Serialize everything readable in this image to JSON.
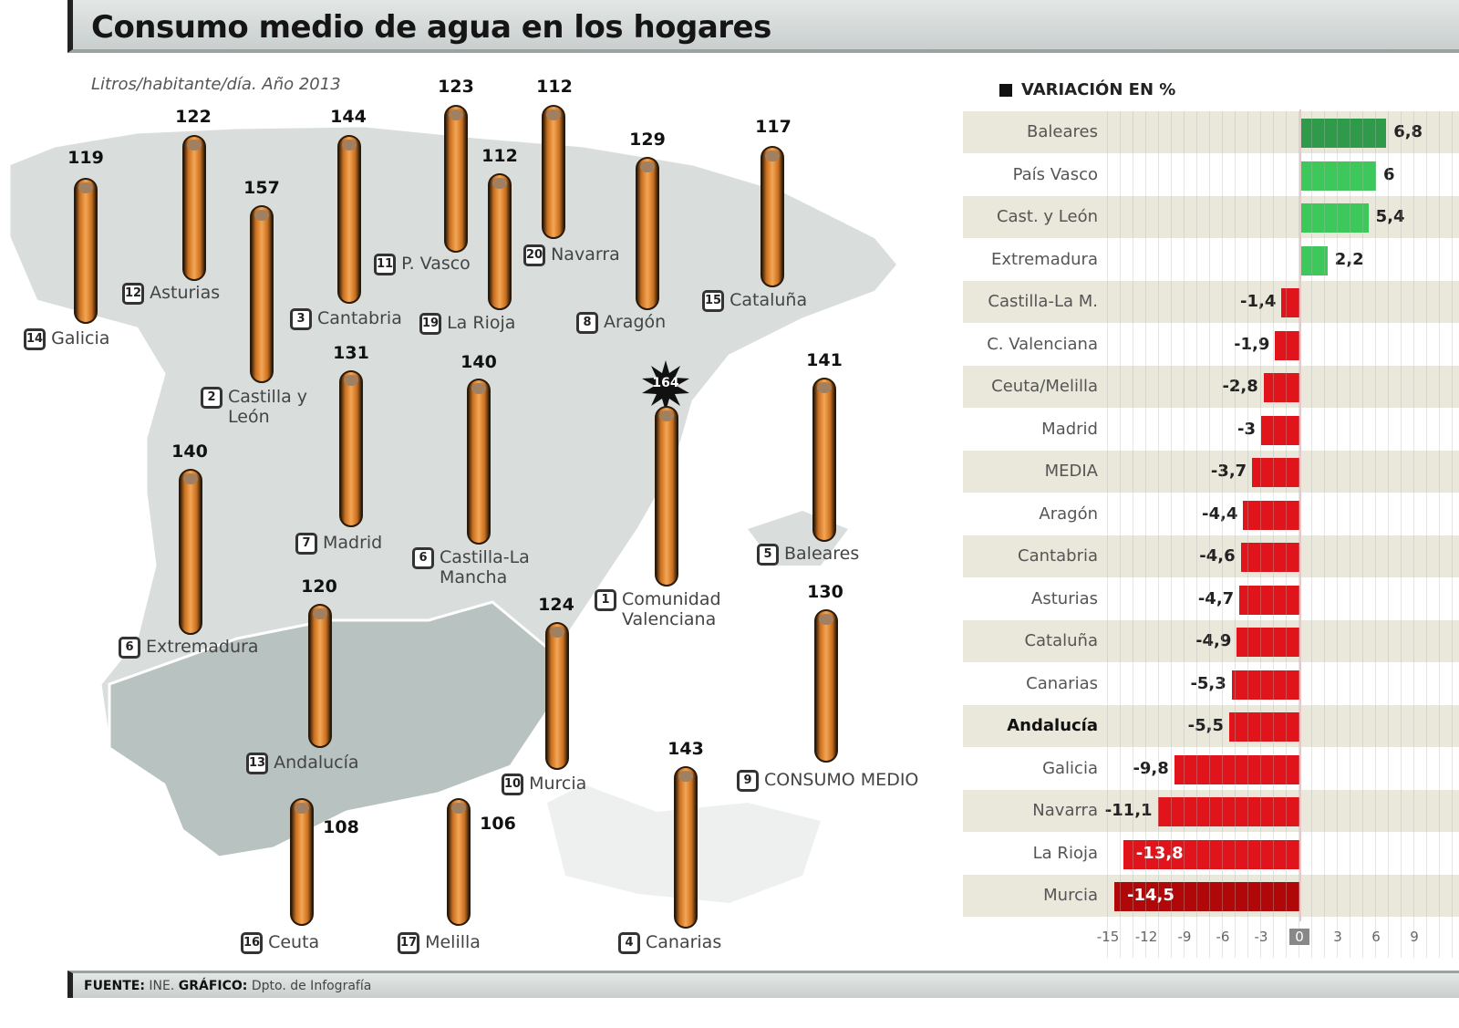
{
  "header": {
    "title": "Consumo medio de agua en los hogares",
    "subtitle": "Litros/habitante/día. Año 2013"
  },
  "map": {
    "regions": [
      {
        "name": "Galicia",
        "value": "119",
        "rank": "14"
      },
      {
        "name": "Asturias",
        "value": "122",
        "rank": "12"
      },
      {
        "name": "Castilla y León",
        "value": "157",
        "rank": "2"
      },
      {
        "name": "Cantabria",
        "value": "144",
        "rank": "3"
      },
      {
        "name": "P. Vasco",
        "value": "123",
        "rank": "11"
      },
      {
        "name": "La Rioja",
        "value": "112",
        "rank": "19"
      },
      {
        "name": "Navarra",
        "value": "112",
        "rank": "20"
      },
      {
        "name": "Aragón",
        "value": "129",
        "rank": "8"
      },
      {
        "name": "Cataluña",
        "value": "117",
        "rank": "15"
      },
      {
        "name": "Madrid",
        "value": "131",
        "rank": "7"
      },
      {
        "name": "Castilla-La Mancha",
        "value": "140",
        "rank": "6"
      },
      {
        "name": "Comunidad Valenciana",
        "value": "164",
        "rank": "1"
      },
      {
        "name": "Baleares",
        "value": "141",
        "rank": "5"
      },
      {
        "name": "Extremadura",
        "value": "140",
        "rank": "6"
      },
      {
        "name": "Andalucía",
        "value": "120",
        "rank": "13"
      },
      {
        "name": "Murcia",
        "value": "124",
        "rank": "10"
      },
      {
        "name": "CONSUMO MEDIO",
        "value": "130",
        "rank": "9"
      },
      {
        "name": "Ceuta",
        "value": "108",
        "rank": "16"
      },
      {
        "name": "Melilla",
        "value": "106",
        "rank": "17"
      },
      {
        "name": "Canarias",
        "value": "143",
        "rank": "4"
      }
    ]
  },
  "variation": {
    "title": "VARIACIÓN EN %",
    "axis_ticks": [
      "-15",
      "-12",
      "-9",
      "-6",
      "-3",
      "0",
      "3",
      "6",
      "9"
    ]
  },
  "footer": {
    "source_label": "FUENTE:",
    "source": "INE.",
    "graphic_label": "GRÁFICO:",
    "graphic": "Dpto. de Infografía"
  },
  "colors": {
    "positive_dark": "#2e9a4a",
    "positive": "#3cc85a",
    "negative": "#e0141a",
    "negative_dark": "#b00808",
    "pillar": "#e8903a",
    "map_land": "#d9dedd",
    "andalucia": "#b8c2c0"
  },
  "chart_data": [
    {
      "type": "bar",
      "title": "Consumo medio de agua en los hogares",
      "subtitle": "Litros/habitante/día. Año 2013",
      "ylabel": "Litros/habitante/día",
      "categories": [
        "Galicia",
        "Asturias",
        "Castilla y León",
        "Cantabria",
        "P. Vasco",
        "La Rioja",
        "Navarra",
        "Aragón",
        "Cataluña",
        "Madrid",
        "Castilla-La Mancha",
        "Comunidad Valenciana",
        "Baleares",
        "Extremadura",
        "Andalucía",
        "Murcia",
        "CONSUMO MEDIO",
        "Ceuta",
        "Melilla",
        "Canarias"
      ],
      "values": [
        119,
        122,
        157,
        144,
        123,
        112,
        112,
        129,
        117,
        131,
        140,
        164,
        141,
        140,
        120,
        124,
        130,
        108,
        106,
        143
      ]
    },
    {
      "type": "bar",
      "orientation": "horizontal",
      "title": "VARIACIÓN EN %",
      "categories": [
        "Baleares",
        "País Vasco",
        "Cast. y León",
        "Extremadura",
        "Castilla-La M.",
        "C. Valenciana",
        "Ceuta/Melilla",
        "Madrid",
        "MEDIA",
        "Aragón",
        "Cantabria",
        "Asturias",
        "Cataluña",
        "Canarias",
        "Andalucía",
        "Galicia",
        "Navarra",
        "La Rioja",
        "Murcia"
      ],
      "values": [
        6.8,
        6,
        5.4,
        2.2,
        -1.4,
        -1.9,
        -2.8,
        -3,
        -3.7,
        -4.4,
        -4.6,
        -4.7,
        -4.9,
        -5.3,
        -5.5,
        -9.8,
        -11.1,
        -13.8,
        -14.5
      ],
      "labels": [
        "6,8",
        "6",
        "5,4",
        "2,2",
        "-1,4",
        "-1,9",
        "-2,8",
        "-3",
        "-3,7",
        "-4,4",
        "-4,6",
        "-4,7",
        "-4,9",
        "-5,3",
        "-5,5",
        "-9,8",
        "-11,1",
        "-13,8",
        "-14,5"
      ],
      "xlim": [
        -15,
        9
      ],
      "xticks": [
        -15,
        -12,
        -9,
        -6,
        -3,
        0,
        3,
        6,
        9
      ],
      "grid": true,
      "highlight": "Andalucía"
    }
  ]
}
